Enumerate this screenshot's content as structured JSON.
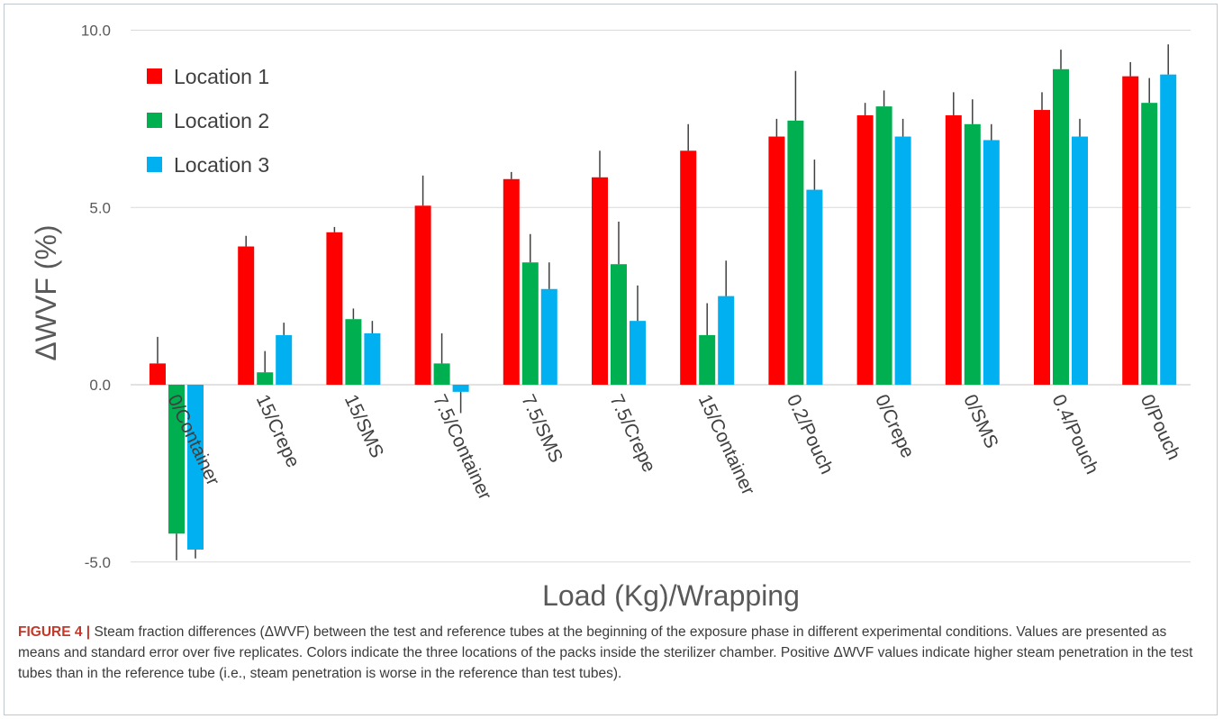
{
  "caption": {
    "label": "FIGURE 4 |",
    "text": "Steam fraction differences (ΔWVF) between the test and reference tubes at the beginning of the exposure phase in different experimental conditions. Values are presented as means and standard error over five replicates. Colors indicate the three locations of the packs inside the sterilizer chamber. Positive ΔWVF values indicate higher steam penetration in the test tubes than in the reference tube (i.e., steam penetration is worse in the reference than test tubes)."
  },
  "chart_data": {
    "type": "bar",
    "title": "",
    "xlabel": "Load (Kg)/Wrapping",
    "ylabel": "ΔWVF (%)",
    "ylim": [
      -5,
      10
    ],
    "yticks": [
      "10.0",
      "5.0",
      "0.0",
      "-5.0"
    ],
    "grid": true,
    "legend_position": "top-left",
    "categories": [
      "0/Container",
      "15/Crepe",
      "15/SMS",
      "7.5/Container",
      "7.5/SMS",
      "7.5/Crepe",
      "15/Container",
      "0.2/Pouch",
      "0/Crepe",
      "0/SMS",
      "0.4/Pouch",
      "0/Pouch"
    ],
    "series": [
      {
        "name": "Location 1",
        "color": "#ff0000",
        "values": [
          0.6,
          3.9,
          4.3,
          5.05,
          5.8,
          5.85,
          6.6,
          7.0,
          7.6,
          7.6,
          7.75,
          8.7
        ],
        "errors": [
          0.75,
          0.3,
          0.15,
          0.85,
          0.2,
          0.75,
          0.75,
          0.5,
          0.35,
          0.65,
          0.5,
          0.4
        ]
      },
      {
        "name": "Location 2",
        "color": "#00b050",
        "values": [
          -4.2,
          0.35,
          1.85,
          0.6,
          3.45,
          3.4,
          1.4,
          7.45,
          7.85,
          7.35,
          8.9,
          7.95
        ],
        "errors": [
          0.75,
          0.6,
          0.3,
          0.85,
          0.8,
          1.2,
          0.9,
          1.4,
          0.45,
          0.7,
          0.55,
          0.7
        ]
      },
      {
        "name": "Location 3",
        "color": "#00b0f0",
        "values": [
          -4.65,
          1.4,
          1.45,
          -0.2,
          2.7,
          1.8,
          2.5,
          5.5,
          7.0,
          6.9,
          7.0,
          8.75
        ],
        "errors": [
          0.25,
          0.35,
          0.35,
          0.6,
          0.75,
          1.0,
          1.0,
          0.85,
          0.5,
          0.45,
          0.5,
          0.85
        ]
      }
    ]
  }
}
